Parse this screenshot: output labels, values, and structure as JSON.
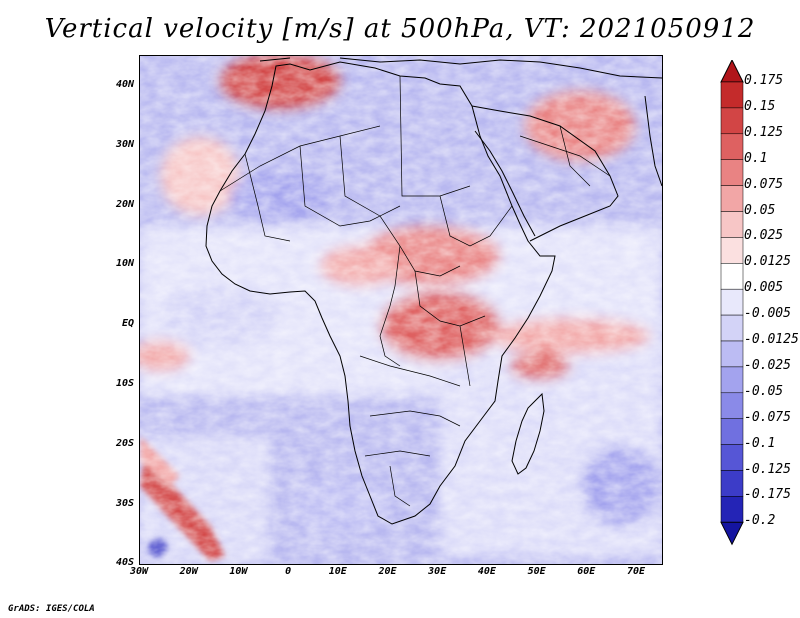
{
  "title": "Vertical velocity [m/s] at 500hPa, VT: 2021050912",
  "credit": "GrADS: IGES/COLA",
  "map": {
    "region": "Africa",
    "lon_range": [
      -30,
      75
    ],
    "lat_range": [
      -40,
      45
    ],
    "lat_labels": [
      "40N",
      "30N",
      "20N",
      "10N",
      "EQ",
      "10S",
      "20S",
      "30S",
      "40S"
    ],
    "lon_labels": [
      "30W",
      "20W",
      "10W",
      "0",
      "10E",
      "20E",
      "30E",
      "40E",
      "50E",
      "60E",
      "70E"
    ]
  },
  "colorbar": {
    "labels": [
      "0.175",
      "0.15",
      "0.125",
      "0.1",
      "0.075",
      "0.05",
      "0.025",
      "0.0125",
      "0.005",
      "-0.005",
      "-0.0125",
      "-0.025",
      "-0.05",
      "-0.075",
      "-0.1",
      "-0.125",
      "-0.175",
      "-0.2"
    ],
    "colors": [
      "#b0151a",
      "#c42b2b",
      "#d24545",
      "#de6161",
      "#e98383",
      "#f2a6a6",
      "#f7c6c6",
      "#fbe0e0",
      "#ffffff",
      "#e8e8fb",
      "#d3d3f7",
      "#bcbcf3",
      "#a3a3ee",
      "#8a8ae8",
      "#7070e0",
      "#5656d6",
      "#3c3cc8",
      "#2424b6",
      "#1414a0"
    ]
  }
}
